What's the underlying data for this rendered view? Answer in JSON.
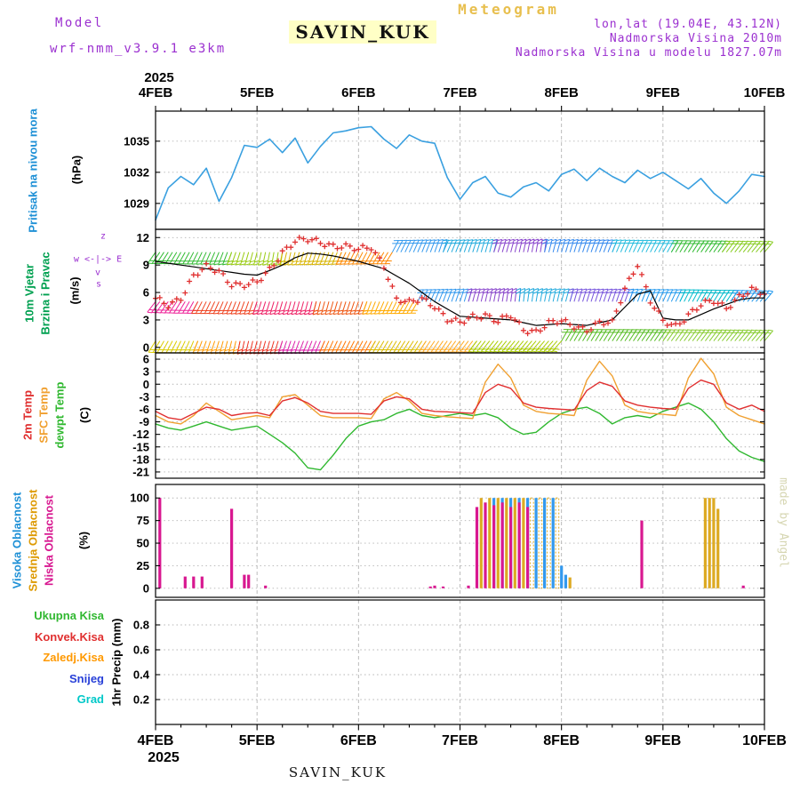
{
  "header": {
    "app_title": "Meteogram",
    "model_label": "Model",
    "model_name": "wrf-nmm_v3.9.1 e3km",
    "station": "SAVIN_KUK",
    "lonlat": "lon,lat (19.04E, 43.12N)",
    "elevation": "Nadmorska Visina 2010m",
    "model_elevation": "Nadmorska Visina u modelu 1827.07m"
  },
  "footer": {
    "station": "SAVIN_KUK",
    "year": "2025"
  },
  "watermark": "made by Angel",
  "axis": {
    "year": "2025",
    "days": [
      "4FEB",
      "5FEB",
      "6FEB",
      "7FEB",
      "8FEB",
      "9FEB",
      "10FEB"
    ],
    "span_hours": 144,
    "step_hours": 3
  },
  "panels": {
    "pressure": {
      "label": "Pritisak na nivou mora",
      "label_color": "#1e90d6",
      "unit": "(hPa)"
    },
    "wind": {
      "label1": "10m Vjetar",
      "label2": "Brzina i Pravac",
      "label_color": "#00a050",
      "unit": "(m/s)",
      "compass": {
        "top": "z",
        "axis": "w <-|-> E",
        "down": "v",
        "bottom": "s",
        "color": "#9b30d0"
      }
    },
    "temp": {
      "series_labels": [
        {
          "text": "2m Temp",
          "color": "#e03030"
        },
        {
          "text": "SFC Temp",
          "color": "#f0a030"
        },
        {
          "text": "dewpt Temp",
          "color": "#30b830"
        }
      ],
      "unit": "(C)"
    },
    "cloud": {
      "series_labels": [
        {
          "text": "Visoka Oblacnost",
          "color": "#1e90d6"
        },
        {
          "text": "Srednja Oblacnost",
          "color": "#dd9900"
        },
        {
          "text": "Niska Oblacnost",
          "color": "#d81890"
        }
      ],
      "unit": "(%)"
    },
    "precip": {
      "legend": [
        {
          "text": "Ukupna Kisa",
          "color": "#30b830"
        },
        {
          "text": "Konvek.Kisa",
          "color": "#e03030"
        },
        {
          "text": "Zaledj.Kisa",
          "color": "#ff9900"
        },
        {
          "text": "Snijeg",
          "color": "#2840d8"
        },
        {
          "text": "Grad",
          "color": "#00c8c8"
        }
      ],
      "unit": "1hr Precip (mm)"
    }
  },
  "chart_data": [
    {
      "id": "pressure",
      "type": "line",
      "title": "Pritisak na nivou mora (hPa)",
      "x_start": "2025-02-04 00h",
      "x_end": "2025-02-10 00h",
      "step_hours": 3,
      "yticks": [
        1029,
        1032,
        1035
      ],
      "ylim": [
        1026.5,
        1037.9
      ],
      "series": [
        {
          "name": "Pritisak na nivou mora",
          "color": "#3aa0e0",
          "values": [
            1027.4,
            1030.5,
            1031.6,
            1030.8,
            1032.4,
            1029.2,
            1031.5,
            1034.6,
            1034.4,
            1035.2,
            1033.9,
            1035.3,
            1032.9,
            1034.5,
            1035.8,
            1036.0,
            1036.3,
            1036.4,
            1035.2,
            1034.3,
            1035.6,
            1035.0,
            1034.8,
            1031.5,
            1029.4,
            1031.0,
            1031.6,
            1030.0,
            1029.6,
            1030.6,
            1031.0,
            1030.2,
            1031.8,
            1032.3,
            1031.2,
            1032.4,
            1031.6,
            1031.0,
            1032.2,
            1031.4,
            1032.0,
            1031.2,
            1030.4,
            1031.4,
            1030.0,
            1029.0,
            1030.2,
            1031.8,
            1031.6
          ]
        }
      ]
    },
    {
      "id": "wind",
      "type": "line",
      "title": "10m Vjetar Brzina i Pravac (m/s)",
      "step_hours": 3,
      "yticks": [
        0,
        3,
        6,
        9,
        12
      ],
      "ylim": [
        -0.6,
        12.9
      ],
      "series": [
        {
          "name": "Brzina vjetra (krizici)",
          "color": "#e03030",
          "marker": "plus",
          "values": [
            5.2,
            4.6,
            5.5,
            7.8,
            8.7,
            8.3,
            7.0,
            6.8,
            7.0,
            8.5,
            10.5,
            11.6,
            11.7,
            11.5,
            11.2,
            11.0,
            10.6,
            11.0,
            9.0,
            5.2,
            4.8,
            5.4,
            4.6,
            3.0,
            2.6,
            3.4,
            3.6,
            2.8,
            3.4,
            2.0,
            1.8,
            2.6,
            2.8,
            2.4,
            2.0,
            2.6,
            2.6,
            6.5,
            9.2,
            5.0,
            2.8,
            2.4,
            3.6,
            4.6,
            5.0,
            4.4,
            5.6,
            6.2,
            5.8
          ]
        },
        {
          "name": "Brzina vjetra (linija)",
          "color": "#000000",
          "values": [
            9.4,
            9.2,
            9.0,
            8.8,
            8.6,
            8.4,
            8.2,
            8.0,
            7.9,
            8.4,
            9.0,
            9.8,
            10.3,
            10.2,
            10.0,
            9.7,
            9.4,
            9.0,
            8.6,
            7.8,
            7.0,
            6.0,
            5.0,
            4.2,
            3.4,
            3.3,
            3.2,
            3.1,
            3.0,
            2.7,
            2.4,
            2.5,
            2.6,
            2.5,
            2.4,
            2.7,
            3.0,
            4.4,
            5.8,
            6.2,
            3.2,
            3.0,
            3.0,
            3.6,
            4.2,
            4.7,
            5.2,
            5.4,
            5.4
          ]
        }
      ],
      "barb_rows": [
        {
          "v": 10.4,
          "segments": [
            [
              0,
              18,
              "#33bb33",
              235,
              250
            ],
            [
              18,
              30,
              "#99cc11",
              250,
              262
            ],
            [
              30,
              44,
              "#d8b400",
              258,
              246
            ],
            [
              44,
              56,
              "#ff8800",
              246,
              238
            ],
            [
              56,
              68,
              "#3399ee",
              62,
              72
            ],
            [
              68,
              80,
              "#22aadd",
              66,
              76
            ],
            [
              80,
              92,
              "#8844cc",
              72,
              82
            ],
            [
              92,
              108,
              "#3388ee",
              76,
              68
            ],
            [
              108,
              122,
              "#22bbdd",
              68,
              60
            ],
            [
              122,
              134,
              "#33bb33",
              60,
              54
            ],
            [
              134,
              144,
              "#88cc22",
              54,
              50
            ]
          ]
        },
        {
          "v": 5.0,
          "segments": [
            [
              0,
              10,
              "#ee2299",
              232,
              242
            ],
            [
              10,
              24,
              "#ee4422",
              242,
              252
            ],
            [
              24,
              38,
              "#ee2266",
              252,
              256
            ],
            [
              38,
              50,
              "#ee5511",
              256,
              250
            ],
            [
              50,
              62,
              "#ffaa00",
              250,
              240
            ],
            [
              62,
              74,
              "#3399ee",
              64,
              74
            ],
            [
              74,
              86,
              "#8844cc",
              74,
              84
            ],
            [
              86,
              98,
              "#22aadd",
              84,
              74
            ],
            [
              98,
              112,
              "#7755dd",
              74,
              70
            ],
            [
              112,
              124,
              "#2299ee",
              70,
              64
            ],
            [
              124,
              136,
              "#00bbcc",
              64,
              56
            ],
            [
              136,
              144,
              "#2299ee",
              56,
              50
            ]
          ]
        },
        {
          "v": 0.7,
          "segments": [
            [
              0,
              10,
              "#ddcc00",
              238,
              248
            ],
            [
              10,
              20,
              "#ff9900",
              248,
              258
            ],
            [
              20,
              30,
              "#ee3322",
              258,
              252
            ],
            [
              30,
              40,
              "#dd22aa",
              252,
              246
            ],
            [
              40,
              52,
              "#ff7700",
              246,
              240
            ],
            [
              52,
              64,
              "#ddbb00",
              240,
              236
            ],
            [
              64,
              76,
              "#ffaa22",
              236,
              232
            ],
            [
              76,
              96,
              "#aacc00",
              232,
              228
            ],
            [
              96,
              120,
              "#55bb22",
              60,
              55
            ],
            [
              120,
              144,
              "#88cc33",
              55,
              50
            ]
          ]
        }
      ]
    },
    {
      "id": "temp",
      "type": "line",
      "title": "2m / SFC / dewpt Temp (C)",
      "step_hours": 3,
      "yticks": [
        6,
        3,
        0,
        -3,
        -6,
        -9,
        -12,
        -15,
        -18,
        -21
      ],
      "ylim": [
        -22.5,
        7.5
      ],
      "series": [
        {
          "name": "2m Temp",
          "color": "#e03030",
          "values": [
            -6.5,
            -8.0,
            -8.5,
            -7.0,
            -5.5,
            -6.0,
            -7.5,
            -7.0,
            -6.8,
            -7.5,
            -4.0,
            -3.2,
            -4.5,
            -6.5,
            -7.0,
            -7.0,
            -7.0,
            -7.2,
            -4.0,
            -3.0,
            -3.5,
            -6.0,
            -6.5,
            -6.6,
            -6.8,
            -7.0,
            -2.0,
            0.0,
            -1.0,
            -4.5,
            -5.5,
            -5.8,
            -6.0,
            -6.2,
            -1.5,
            0.5,
            -0.5,
            -4.0,
            -5.0,
            -5.5,
            -5.8,
            -6.0,
            -1.0,
            1.0,
            0.0,
            -4.5,
            -6.0,
            -5.0,
            -6.5
          ]
        },
        {
          "name": "SFC Temp",
          "color": "#f0a030",
          "values": [
            -7.5,
            -9.0,
            -9.5,
            -7.5,
            -4.5,
            -6.5,
            -8.5,
            -8.0,
            -7.5,
            -8.0,
            -3.0,
            -2.5,
            -5.0,
            -7.5,
            -8.0,
            -8.0,
            -8.0,
            -8.2,
            -3.5,
            -2.0,
            -4.0,
            -7.0,
            -7.5,
            -7.8,
            -8.0,
            -8.2,
            0.5,
            4.8,
            1.5,
            -5.0,
            -6.5,
            -7.0,
            -7.2,
            -7.5,
            1.0,
            5.5,
            2.0,
            -5.0,
            -6.5,
            -7.0,
            -7.2,
            -7.5,
            1.5,
            6.2,
            2.5,
            -5.5,
            -7.5,
            -8.5,
            -9.5
          ]
        },
        {
          "name": "dewpt Temp",
          "color": "#30b830",
          "values": [
            -9.5,
            -10.5,
            -11.0,
            -10.0,
            -9.0,
            -10.0,
            -11.0,
            -10.5,
            -10.0,
            -12.0,
            -14.0,
            -16.5,
            -20.0,
            -20.5,
            -17.0,
            -13.0,
            -10.0,
            -9.0,
            -8.5,
            -7.0,
            -6.0,
            -7.5,
            -8.0,
            -7.5,
            -7.0,
            -7.5,
            -7.0,
            -8.0,
            -10.5,
            -12.0,
            -11.5,
            -9.0,
            -7.0,
            -6.0,
            -5.5,
            -7.0,
            -9.5,
            -8.0,
            -7.5,
            -8.0,
            -6.5,
            -5.5,
            -4.5,
            -6.0,
            -9.0,
            -13.0,
            -16.0,
            -17.5,
            -18.5
          ]
        }
      ]
    },
    {
      "id": "cloud",
      "type": "bar",
      "title": "Oblacnost (%)",
      "yticks": [
        0,
        25,
        50,
        75,
        100
      ],
      "ylim": [
        -10,
        115
      ],
      "series": [
        {
          "name": "Srednja Oblacnost",
          "color": "#ddaa22",
          "points": [
            [
              77,
              100
            ],
            [
              79,
              100
            ],
            [
              81,
              100
            ],
            [
              83,
              100
            ],
            [
              85,
              100
            ],
            [
              87,
              100
            ],
            [
              98,
              12
            ],
            [
              130,
              100
            ],
            [
              131,
              100
            ],
            [
              132,
              100
            ],
            [
              133,
              88
            ]
          ],
          "outline_points": [
            [
              89,
              100
            ],
            [
              91,
              100
            ],
            [
              93,
              100
            ],
            [
              95,
              100
            ]
          ]
        },
        {
          "name": "Visoka Oblacnost",
          "color": "#3399ee",
          "points": [
            [
              80,
              100
            ],
            [
              82,
              100
            ],
            [
              84,
              100
            ],
            [
              86,
              100
            ],
            [
              88,
              100
            ],
            [
              90,
              100
            ],
            [
              92,
              100
            ],
            [
              94,
              100
            ],
            [
              96,
              25
            ],
            [
              97,
              15
            ]
          ]
        },
        {
          "name": "Niska Oblacnost",
          "color": "#d81890",
          "points": [
            [
              1,
              100
            ],
            [
              7,
              13
            ],
            [
              9,
              13
            ],
            [
              11,
              13
            ],
            [
              18,
              88
            ],
            [
              21,
              15
            ],
            [
              22,
              15
            ],
            [
              26,
              3
            ],
            [
              65,
              2
            ],
            [
              66,
              3
            ],
            [
              68,
              2
            ],
            [
              74,
              3
            ],
            [
              76,
              90
            ],
            [
              78,
              95
            ],
            [
              80,
              92
            ],
            [
              82,
              95
            ],
            [
              84,
              90
            ],
            [
              86,
              95
            ],
            [
              88,
              90
            ],
            [
              115,
              75
            ],
            [
              139,
              3
            ]
          ]
        }
      ]
    },
    {
      "id": "precip",
      "type": "bar",
      "title": "1hr Precip (mm)",
      "yticks": [
        0.2,
        0.4,
        0.6,
        0.8
      ],
      "ylim": [
        0,
        1.0
      ],
      "series": [
        {
          "name": "Ukupna Kisa",
          "color": "#30b830",
          "points": []
        },
        {
          "name": "Konvek.Kisa",
          "color": "#e03030",
          "points": []
        },
        {
          "name": "Zaledj.Kisa",
          "color": "#ff9900",
          "points": []
        },
        {
          "name": "Snijeg",
          "color": "#2840d8",
          "points": []
        },
        {
          "name": "Grad",
          "color": "#00c8c8",
          "points": []
        }
      ]
    }
  ]
}
